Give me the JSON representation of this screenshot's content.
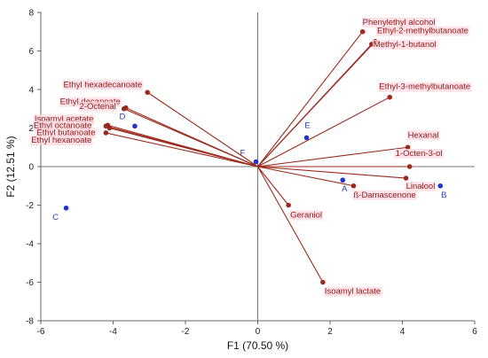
{
  "chart_data": {
    "type": "scatter",
    "title": "",
    "xlabel": "F1 (70.50 %)",
    "ylabel": "F2 (12.51 %)",
    "xlim": [
      -6,
      6
    ],
    "ylim": [
      -8,
      8
    ],
    "xticks": [
      "-6",
      "-4",
      "-2",
      "0",
      "2",
      "4",
      "6"
    ],
    "yticks": [
      "-8",
      "-6",
      "-4",
      "-2",
      "0",
      "2",
      "4",
      "6",
      "8"
    ],
    "grid": false,
    "colors": {
      "variables": "#9b2a1e",
      "observations": "#2233cc",
      "labelHighlight": "#ffd9e0"
    },
    "variables": [
      {
        "name": "Phenylethyl alcohol",
        "x": 2.9,
        "y": 7.0
      },
      {
        "name": "Ethyl-2-methylbutanoate",
        "x": 3.25,
        "y": 6.5
      },
      {
        "name": "Methyl-1-butanol",
        "x": 3.15,
        "y": 6.35
      },
      {
        "name": "Ethyl-3-methylbutanoate",
        "x": 3.65,
        "y": 3.6
      },
      {
        "name": "Hexanal",
        "x": 4.15,
        "y": 1.0
      },
      {
        "name": "1-Octen-3-ol",
        "x": 4.2,
        "y": 0.0
      },
      {
        "name": "Linalool",
        "x": 4.1,
        "y": -0.6
      },
      {
        "name": "ß-Damascenone",
        "x": 2.65,
        "y": -1.0
      },
      {
        "name": "Geraniol",
        "x": 0.85,
        "y": -2.0
      },
      {
        "name": "Isoamyl lactate",
        "x": 1.8,
        "y": -6.0
      },
      {
        "name": "Ethyl hexadecanoate",
        "x": -3.05,
        "y": 3.85
      },
      {
        "name": "Ethyl decanoate",
        "x": -3.65,
        "y": 3.05
      },
      {
        "name": "2-Octenal",
        "x": -3.7,
        "y": 3.0
      },
      {
        "name": "Isoamyl acetate",
        "x": -4.15,
        "y": 2.15
      },
      {
        "name": "Ethyl octanoate",
        "x": -4.2,
        "y": 2.1
      },
      {
        "name": "Ethyl butanoate",
        "x": -4.1,
        "y": 2.0
      },
      {
        "name": "Ethyl hexanoate",
        "x": -4.2,
        "y": 1.75
      }
    ],
    "observations": [
      {
        "name": "A",
        "x": 2.35,
        "y": -0.7
      },
      {
        "name": "B",
        "x": 5.05,
        "y": -1.0
      },
      {
        "name": "C",
        "x": -5.3,
        "y": -2.15
      },
      {
        "name": "D",
        "x": -3.4,
        "y": 2.1
      },
      {
        "name": "E",
        "x": 1.35,
        "y": 1.5
      },
      {
        "name": "F",
        "x": -0.05,
        "y": 0.25
      }
    ]
  }
}
